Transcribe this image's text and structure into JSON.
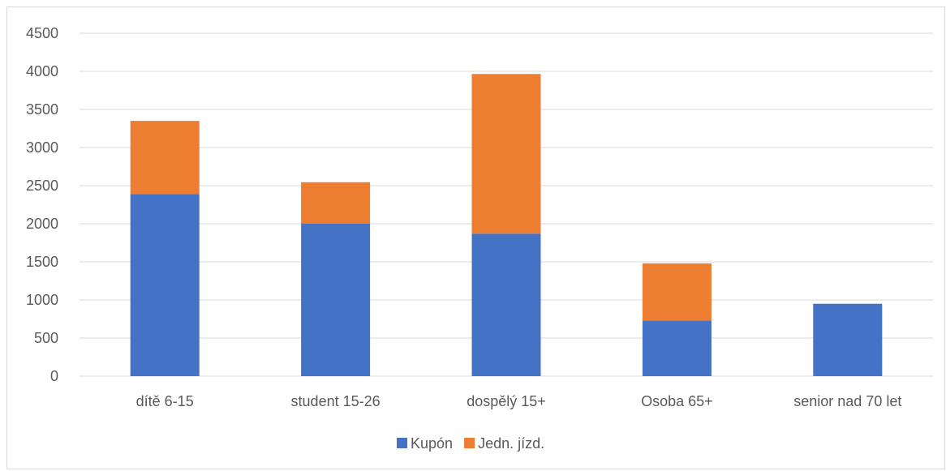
{
  "chart_data": {
    "type": "bar",
    "stacked": true,
    "categories": [
      "dítě 6-15",
      "student 15-26",
      "dospělý 15+",
      "Osoba 65+",
      "senior nad 70 let"
    ],
    "series": [
      {
        "name": "Kupón",
        "color": "#4472c4",
        "values": [
          2390,
          2000,
          1870,
          730,
          950
        ]
      },
      {
        "name": "Jedn. jízd.",
        "color": "#ed7d31",
        "values": [
          960,
          545,
          2095,
          750,
          0
        ]
      }
    ],
    "ylim": [
      0,
      4500
    ],
    "yticks": [
      0,
      500,
      1000,
      1500,
      2000,
      2500,
      3000,
      3500,
      4000,
      4500
    ],
    "grid": true,
    "legend": "bottom"
  }
}
